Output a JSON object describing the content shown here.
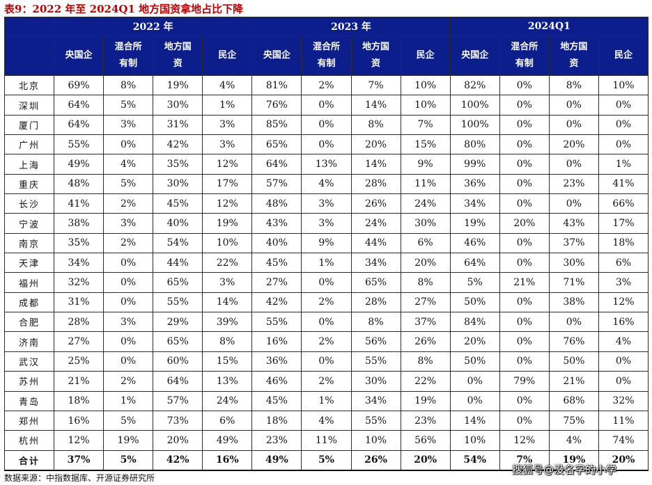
{
  "title": "表9：2022 年至 2024Q1 地方国资拿地占比下降",
  "years": [
    "2022 年",
    "2023 年",
    "2024Q1"
  ],
  "subheaders": [
    "央国企",
    "混合所有制",
    "地方国资",
    "民企"
  ],
  "rows": [
    {
      "city": "北京",
      "values": [
        "69%",
        "8%",
        "19%",
        "4%",
        "81%",
        "2%",
        "7%",
        "10%",
        "82%",
        "0%",
        "8%",
        "10%"
      ]
    },
    {
      "city": "深圳",
      "values": [
        "64%",
        "5%",
        "30%",
        "1%",
        "76%",
        "0%",
        "14%",
        "10%",
        "100%",
        "0%",
        "0%",
        "0%"
      ]
    },
    {
      "city": "厦门",
      "values": [
        "64%",
        "3%",
        "31%",
        "3%",
        "85%",
        "0%",
        "8%",
        "7%",
        "100%",
        "0%",
        "0%",
        "0%"
      ]
    },
    {
      "city": "广州",
      "values": [
        "55%",
        "0%",
        "42%",
        "3%",
        "65%",
        "0%",
        "20%",
        "15%",
        "80%",
        "0%",
        "20%",
        "0%"
      ]
    },
    {
      "city": "上海",
      "values": [
        "49%",
        "4%",
        "35%",
        "12%",
        "64%",
        "13%",
        "14%",
        "9%",
        "99%",
        "0%",
        "0%",
        "1%"
      ]
    },
    {
      "city": "重庆",
      "values": [
        "48%",
        "5%",
        "30%",
        "17%",
        "57%",
        "4%",
        "28%",
        "11%",
        "36%",
        "0%",
        "23%",
        "41%"
      ]
    },
    {
      "city": "长沙",
      "values": [
        "41%",
        "2%",
        "45%",
        "12%",
        "48%",
        "3%",
        "26%",
        "24%",
        "34%",
        "0%",
        "0%",
        "66%"
      ]
    },
    {
      "city": "宁波",
      "values": [
        "38%",
        "3%",
        "40%",
        "19%",
        "43%",
        "3%",
        "24%",
        "30%",
        "19%",
        "20%",
        "43%",
        "17%"
      ]
    },
    {
      "city": "南京",
      "values": [
        "35%",
        "2%",
        "54%",
        "10%",
        "40%",
        "9%",
        "44%",
        "6%",
        "46%",
        "0%",
        "37%",
        "18%"
      ]
    },
    {
      "city": "天津",
      "values": [
        "34%",
        "0%",
        "44%",
        "22%",
        "45%",
        "1%",
        "34%",
        "20%",
        "64%",
        "0%",
        "30%",
        "6%"
      ]
    },
    {
      "city": "福州",
      "values": [
        "32%",
        "0%",
        "65%",
        "3%",
        "27%",
        "0%",
        "65%",
        "8%",
        "5%",
        "21%",
        "71%",
        "3%"
      ]
    },
    {
      "city": "成都",
      "values": [
        "31%",
        "0%",
        "55%",
        "14%",
        "42%",
        "2%",
        "28%",
        "27%",
        "50%",
        "0%",
        "38%",
        "12%"
      ]
    },
    {
      "city": "合肥",
      "values": [
        "28%",
        "3%",
        "29%",
        "39%",
        "55%",
        "0%",
        "8%",
        "37%",
        "84%",
        "0%",
        "0%",
        "16%"
      ]
    },
    {
      "city": "济南",
      "values": [
        "27%",
        "0%",
        "65%",
        "8%",
        "16%",
        "2%",
        "56%",
        "26%",
        "20%",
        "0%",
        "76%",
        "4%"
      ]
    },
    {
      "city": "武汉",
      "values": [
        "25%",
        "0%",
        "60%",
        "15%",
        "36%",
        "0%",
        "55%",
        "8%",
        "50%",
        "0%",
        "50%",
        "0%"
      ]
    },
    {
      "city": "苏州",
      "values": [
        "21%",
        "2%",
        "64%",
        "13%",
        "46%",
        "2%",
        "30%",
        "22%",
        "0%",
        "79%",
        "21%",
        "0%"
      ]
    },
    {
      "city": "青岛",
      "values": [
        "18%",
        "1%",
        "57%",
        "24%",
        "45%",
        "1%",
        "34%",
        "19%",
        "0%",
        "0%",
        "68%",
        "32%"
      ]
    },
    {
      "city": "郑州",
      "values": [
        "16%",
        "5%",
        "73%",
        "6%",
        "18%",
        "4%",
        "55%",
        "23%",
        "14%",
        "0%",
        "75%",
        "11%"
      ]
    },
    {
      "city": "杭州",
      "values": [
        "12%",
        "19%",
        "20%",
        "49%",
        "23%",
        "11%",
        "10%",
        "56%",
        "10%",
        "12%",
        "4%",
        "74%"
      ]
    }
  ],
  "total": {
    "city": "合计",
    "values": [
      "37%",
      "5%",
      "42%",
      "16%",
      "49%",
      "5%",
      "26%",
      "20%",
      "54%",
      "7%",
      "19%",
      "20%"
    ]
  },
  "source": "数据来源：中指数据库、开源证券研究所",
  "watermark": "搜狐号@没名字的小学"
}
